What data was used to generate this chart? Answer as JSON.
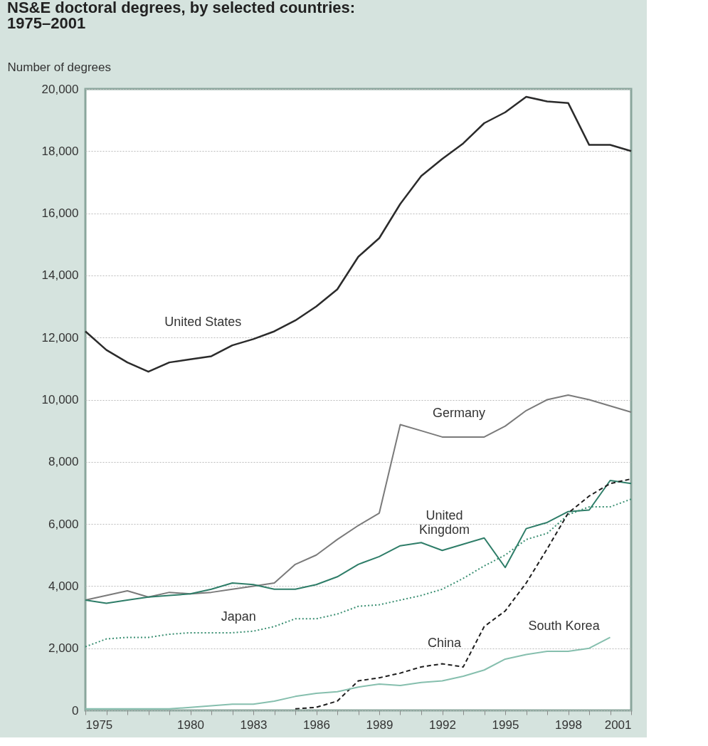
{
  "chart_data": {
    "type": "line",
    "title": "NS&E doctoral degrees, by selected countries: 1975–2001",
    "ylabel": "Number of degrees",
    "x": [
      1975,
      1976,
      1977,
      1978,
      1979,
      1980,
      1981,
      1982,
      1983,
      1984,
      1985,
      1986,
      1987,
      1988,
      1989,
      1990,
      1991,
      1992,
      1993,
      1994,
      1995,
      1996,
      1997,
      1998,
      1999,
      2000,
      2001
    ],
    "series": [
      {
        "name": "United States",
        "color": "#2b2b2b",
        "line_style": "solid",
        "values": [
          12200,
          11600,
          11200,
          10900,
          11200,
          11300,
          11400,
          11750,
          11950,
          12200,
          12550,
          13000,
          13550,
          14600,
          15200,
          16300,
          17200,
          17750,
          18250,
          18900,
          19250,
          19750,
          19600,
          19550,
          18200,
          18200,
          18000
        ]
      },
      {
        "name": "Germany",
        "color": "#7a7a7a",
        "line_style": "solid",
        "values": [
          3550,
          3700,
          3850,
          3650,
          3800,
          3750,
          3800,
          3900,
          4000,
          4100,
          4700,
          5000,
          5500,
          5950,
          6350,
          9200,
          9000,
          8800,
          8800,
          8800,
          9150,
          9650,
          10000,
          10150,
          10000,
          9800,
          9600
        ]
      },
      {
        "name": "United Kingdom",
        "color": "#2e7d68",
        "line_style": "solid",
        "values": [
          3550,
          3450,
          3550,
          3650,
          3700,
          3750,
          3900,
          4100,
          4050,
          3900,
          3900,
          4050,
          4300,
          4700,
          4950,
          5300,
          5400,
          5150,
          5350,
          5550,
          4600,
          5850,
          6050,
          6400,
          6450,
          7400,
          7300
        ]
      },
      {
        "name": "Japan",
        "color": "#3a8f72",
        "line_style": "dotted",
        "values": [
          2050,
          2300,
          2350,
          2350,
          2450,
          2500,
          2500,
          2500,
          2550,
          2700,
          2950,
          2950,
          3100,
          3350,
          3400,
          3550,
          3700,
          3900,
          4250,
          4650,
          5000,
          5500,
          5700,
          6300,
          6550,
          6550,
          6800
        ]
      },
      {
        "name": "China",
        "color": "#1e1e1e",
        "line_style": "dashed",
        "values": [
          null,
          null,
          null,
          null,
          null,
          null,
          null,
          null,
          null,
          null,
          50,
          100,
          300,
          950,
          1050,
          1200,
          1400,
          1500,
          1400,
          2700,
          3200,
          4100,
          5200,
          6350,
          6900,
          7300,
          7450
        ]
      },
      {
        "name": "South Korea",
        "color": "#86bfae",
        "line_style": "solid",
        "values": [
          50,
          50,
          50,
          50,
          50,
          100,
          150,
          200,
          200,
          300,
          450,
          550,
          600,
          750,
          850,
          800,
          900,
          950,
          1100,
          1300,
          1650,
          1800,
          1900,
          1900,
          2000,
          2350,
          null
        ]
      }
    ],
    "xlim": [
      1975,
      2001
    ],
    "ylim": [
      0,
      20000
    ],
    "xticks": [
      1975,
      {
        "value": 1976,
        "label": null
      },
      {
        "value": 1977,
        "label": null
      },
      {
        "value": 1978,
        "label": null
      },
      {
        "value": 1979,
        "label": null
      },
      1980,
      {
        "value": 1981,
        "label": null
      },
      {
        "value": 1982,
        "label": null
      },
      1983,
      {
        "value": 1984,
        "label": null
      },
      {
        "value": 1985,
        "label": null
      },
      1986,
      {
        "value": 1987,
        "label": null
      },
      {
        "value": 1988,
        "label": null
      },
      1989,
      {
        "value": 1990,
        "label": null
      },
      {
        "value": 1991,
        "label": null
      },
      1992,
      {
        "value": 1993,
        "label": null
      },
      {
        "value": 1994,
        "label": null
      },
      1995,
      {
        "value": 1996,
        "label": null
      },
      {
        "value": 1997,
        "label": null
      },
      1998,
      {
        "value": 1999,
        "label": null
      },
      {
        "value": 2000,
        "label": null
      },
      2001
    ],
    "yticks": [
      0,
      {
        "value": 2000,
        "label": "2,000"
      },
      {
        "value": 4000,
        "label": "4,000"
      },
      {
        "value": 6000,
        "label": "6,000"
      },
      {
        "value": 8000,
        "label": "8,000"
      },
      {
        "value": 10000,
        "label": "10,000"
      },
      {
        "value": 12000,
        "label": "12,000"
      },
      {
        "value": 14000,
        "label": "14,000"
      },
      {
        "value": 16000,
        "label": "16,000"
      },
      {
        "value": 18000,
        "label": "18,000"
      },
      {
        "value": 20000,
        "label": "20,000"
      }
    ],
    "grid": "y",
    "legend": false,
    "marker": "none"
  }
}
